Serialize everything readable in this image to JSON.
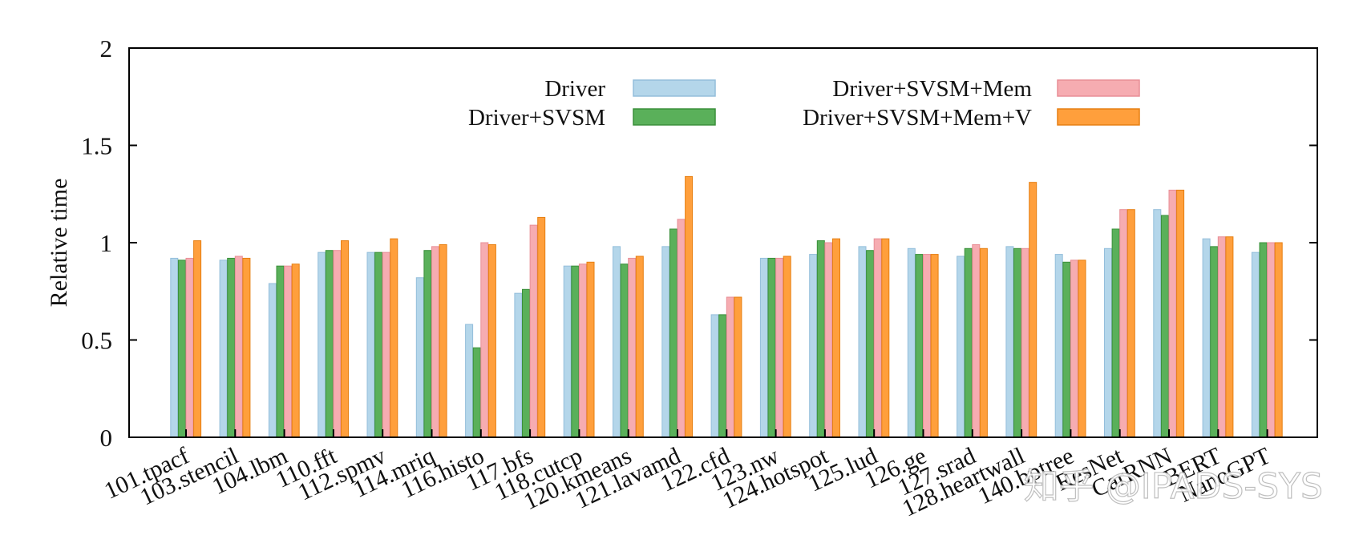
{
  "chart_data": {
    "type": "bar",
    "title": "",
    "xlabel": "",
    "ylabel": "Relative time",
    "ylim": [
      0,
      2
    ],
    "yticks": [
      "0",
      "0.5",
      "1",
      "1.5",
      "2"
    ],
    "grid": false,
    "legend_position": "top",
    "categories": [
      "101.tpacf",
      "103.stencil",
      "104.lbm",
      "110.fft",
      "112.spmv",
      "114.mriq",
      "116.histo",
      "117.bfs",
      "118.cutcp",
      "120.kmeans",
      "121.lavamd",
      "122.cfd",
      "123.nw",
      "124.hotspot",
      "125.lud",
      "126.ge",
      "127.srad",
      "128.heartwall",
      "140.bptree",
      "ResNet",
      "CarRNN",
      "BERT",
      "NanoGPT"
    ],
    "series": [
      {
        "name": "Driver",
        "color": "#b4d6ea",
        "stroke": "#94bedb",
        "values": [
          0.92,
          0.91,
          0.79,
          0.95,
          0.95,
          0.82,
          0.58,
          0.74,
          0.88,
          0.98,
          0.98,
          0.63,
          0.92,
          0.94,
          0.98,
          0.97,
          0.93,
          0.98,
          0.94,
          0.97,
          1.17,
          1.02,
          0.95
        ]
      },
      {
        "name": "Driver+SVSM",
        "color": "#5ab05a",
        "stroke": "#3a8f3a",
        "values": [
          0.91,
          0.92,
          0.88,
          0.96,
          0.95,
          0.96,
          0.46,
          0.76,
          0.88,
          0.89,
          1.07,
          0.63,
          0.92,
          1.01,
          0.96,
          0.94,
          0.97,
          0.97,
          0.9,
          1.07,
          1.14,
          0.98,
          1.0
        ]
      },
      {
        "name": "Driver+SVSM+Mem",
        "color": "#f6acb1",
        "stroke": "#e88e96",
        "values": [
          0.92,
          0.93,
          0.88,
          0.96,
          0.95,
          0.98,
          1.0,
          1.09,
          0.89,
          0.92,
          1.12,
          0.72,
          0.92,
          1.0,
          1.02,
          0.94,
          0.99,
          0.97,
          0.91,
          1.17,
          1.27,
          1.03,
          1.0
        ]
      },
      {
        "name": "Driver+SVSM+Mem+V",
        "color": "#ff9f3c",
        "stroke": "#e67f12",
        "values": [
          1.01,
          0.92,
          0.89,
          1.01,
          1.02,
          0.99,
          0.99,
          1.13,
          0.9,
          0.93,
          1.34,
          0.72,
          0.93,
          1.02,
          1.02,
          0.94,
          0.97,
          1.31,
          0.91,
          1.17,
          1.27,
          1.03,
          1.0
        ]
      }
    ]
  },
  "watermark": "知乎 @IPADS-SYS"
}
